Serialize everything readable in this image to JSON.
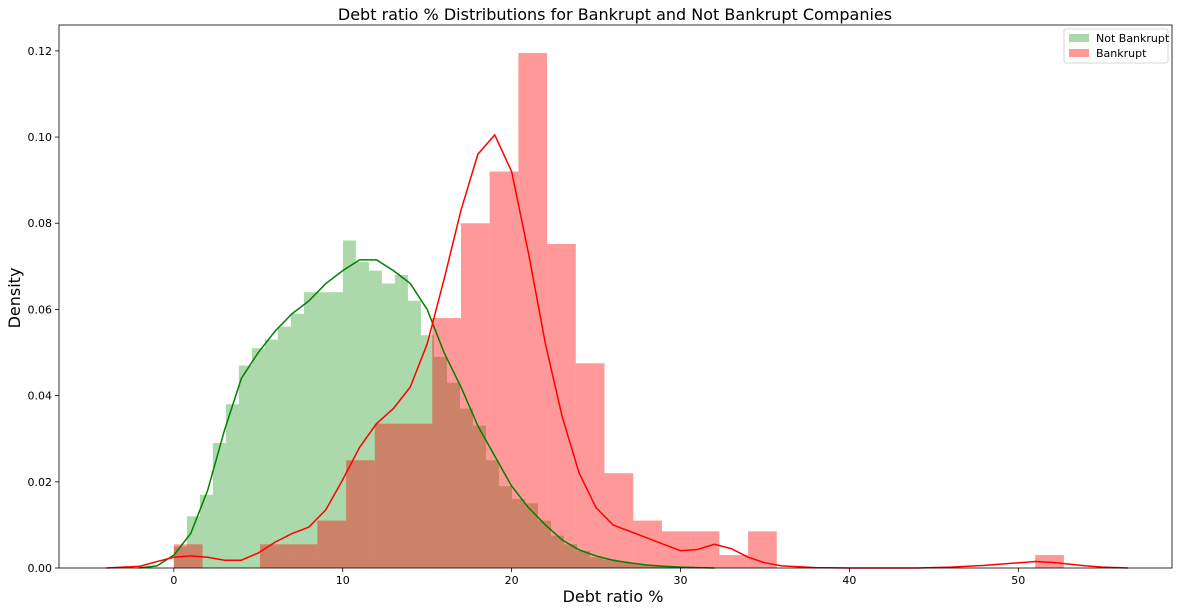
{
  "chart_data": {
    "type": "histogram",
    "title": "Debt ratio % Distributions for Bankrupt and Not Bankrupt Companies",
    "xlabel": "Debt ratio %",
    "ylabel": "Density",
    "xlim": [
      -6.8,
      59.1
    ],
    "ylim": [
      0,
      0.126
    ],
    "xticks": [
      0,
      10,
      20,
      30,
      40,
      50
    ],
    "yticks": [
      0.0,
      0.02,
      0.04,
      0.06,
      0.08,
      0.1,
      0.12
    ],
    "ytick_labels": [
      "0.00",
      "0.02",
      "0.04",
      "0.06",
      "0.08",
      "0.10",
      "0.12"
    ],
    "grid": false,
    "legend_position": "top-right",
    "series": [
      {
        "name": "Not Bankrupt",
        "color": "#2ca02c",
        "line_color": "#008000",
        "alpha": 0.4,
        "bin_edges": [
          0.0,
          0.77,
          1.54,
          2.31,
          3.08,
          3.85,
          4.62,
          5.39,
          6.16,
          6.93,
          7.7,
          8.47,
          9.24,
          10.01,
          10.78,
          11.55,
          12.32,
          13.09,
          13.86,
          14.63,
          15.4,
          16.17,
          16.94,
          17.71,
          18.48,
          19.25,
          20.02,
          20.79,
          21.56,
          22.33,
          23.1,
          23.87,
          24.64,
          25.41,
          26.18,
          26.95,
          27.72,
          28.49,
          29.26,
          30.03,
          30.8,
          31.57,
          32.34
        ],
        "values": [
          0.005,
          0.012,
          0.017,
          0.029,
          0.038,
          0.047,
          0.051,
          0.053,
          0.056,
          0.059,
          0.064,
          0.064,
          0.064,
          0.076,
          0.071,
          0.069,
          0.066,
          0.068,
          0.062,
          0.054,
          0.049,
          0.043,
          0.037,
          0.033,
          0.025,
          0.019,
          0.016,
          0.015,
          0.011,
          0.0075,
          0.0055,
          0.004,
          0.0025,
          0.002,
          0.0015,
          0.001,
          0.0008,
          0.0005,
          0.0004,
          0.0003,
          0.0002,
          0.0001
        ],
        "kde_x": [
          -2.1,
          -1,
          0,
          1,
          2,
          3,
          4,
          5,
          6,
          7,
          8,
          9,
          10,
          11,
          12,
          13,
          14,
          15,
          16,
          17,
          18,
          19,
          20,
          21,
          22,
          23,
          24,
          25,
          26,
          27,
          28,
          29,
          30,
          31,
          32
        ],
        "kde_y": [
          0.0,
          0.0005,
          0.003,
          0.008,
          0.018,
          0.032,
          0.044,
          0.05,
          0.055,
          0.059,
          0.062,
          0.066,
          0.069,
          0.0715,
          0.0715,
          0.069,
          0.066,
          0.06,
          0.05,
          0.042,
          0.033,
          0.026,
          0.019,
          0.014,
          0.01,
          0.0065,
          0.0042,
          0.0028,
          0.0018,
          0.0012,
          0.0007,
          0.0004,
          0.0002,
          0.0001,
          0.0
        ]
      },
      {
        "name": "Bankrupt",
        "color": "#ff0000",
        "line_color": "#ff0000",
        "alpha": 0.4,
        "bin_edges": [
          0.0,
          1.7,
          3.4,
          5.1,
          6.8,
          8.5,
          10.2,
          11.9,
          13.6,
          15.3,
          17.0,
          18.7,
          20.4,
          22.1,
          23.8,
          25.5,
          27.2,
          28.9,
          30.6,
          32.3,
          34.0,
          35.7,
          37.4,
          39.1,
          40.8,
          42.5,
          44.2,
          45.9,
          47.6,
          49.3,
          51.0,
          52.7
        ],
        "values": [
          0.0055,
          0.0,
          0.0,
          0.0055,
          0.0055,
          0.011,
          0.025,
          0.0335,
          0.0335,
          0.058,
          0.08,
          0.092,
          0.1195,
          0.0752,
          0.0475,
          0.022,
          0.011,
          0.0085,
          0.0085,
          0.003,
          0.0085,
          0.0,
          0.0,
          0.0,
          0.0,
          0.0,
          0.0,
          0.0,
          0.0,
          0.0,
          0.003
        ],
        "kde_x": [
          -4,
          -2,
          -1,
          0,
          1,
          2,
          3,
          4,
          5,
          6,
          7,
          8,
          9,
          10,
          11,
          12,
          13,
          14,
          15,
          16,
          17,
          18,
          19,
          20,
          21,
          22,
          23,
          24,
          25,
          26,
          27,
          28,
          29,
          30,
          31,
          32,
          33,
          34,
          35,
          36,
          38,
          40,
          42,
          44,
          46,
          48,
          50,
          51,
          52,
          53,
          54,
          55,
          56.5
        ],
        "kde_y": [
          0.0,
          0.0004,
          0.0015,
          0.0025,
          0.0028,
          0.0025,
          0.0018,
          0.0018,
          0.0035,
          0.006,
          0.008,
          0.0095,
          0.0135,
          0.0205,
          0.028,
          0.0335,
          0.037,
          0.042,
          0.052,
          0.067,
          0.083,
          0.096,
          0.1005,
          0.092,
          0.073,
          0.052,
          0.035,
          0.022,
          0.014,
          0.01,
          0.0085,
          0.007,
          0.0055,
          0.004,
          0.0043,
          0.0055,
          0.0045,
          0.0025,
          0.0012,
          0.0005,
          0.0001,
          0.0,
          0.0,
          0.0,
          0.0002,
          0.0006,
          0.0012,
          0.0015,
          0.0013,
          0.0009,
          0.0005,
          0.0002,
          0.0
        ]
      }
    ]
  }
}
